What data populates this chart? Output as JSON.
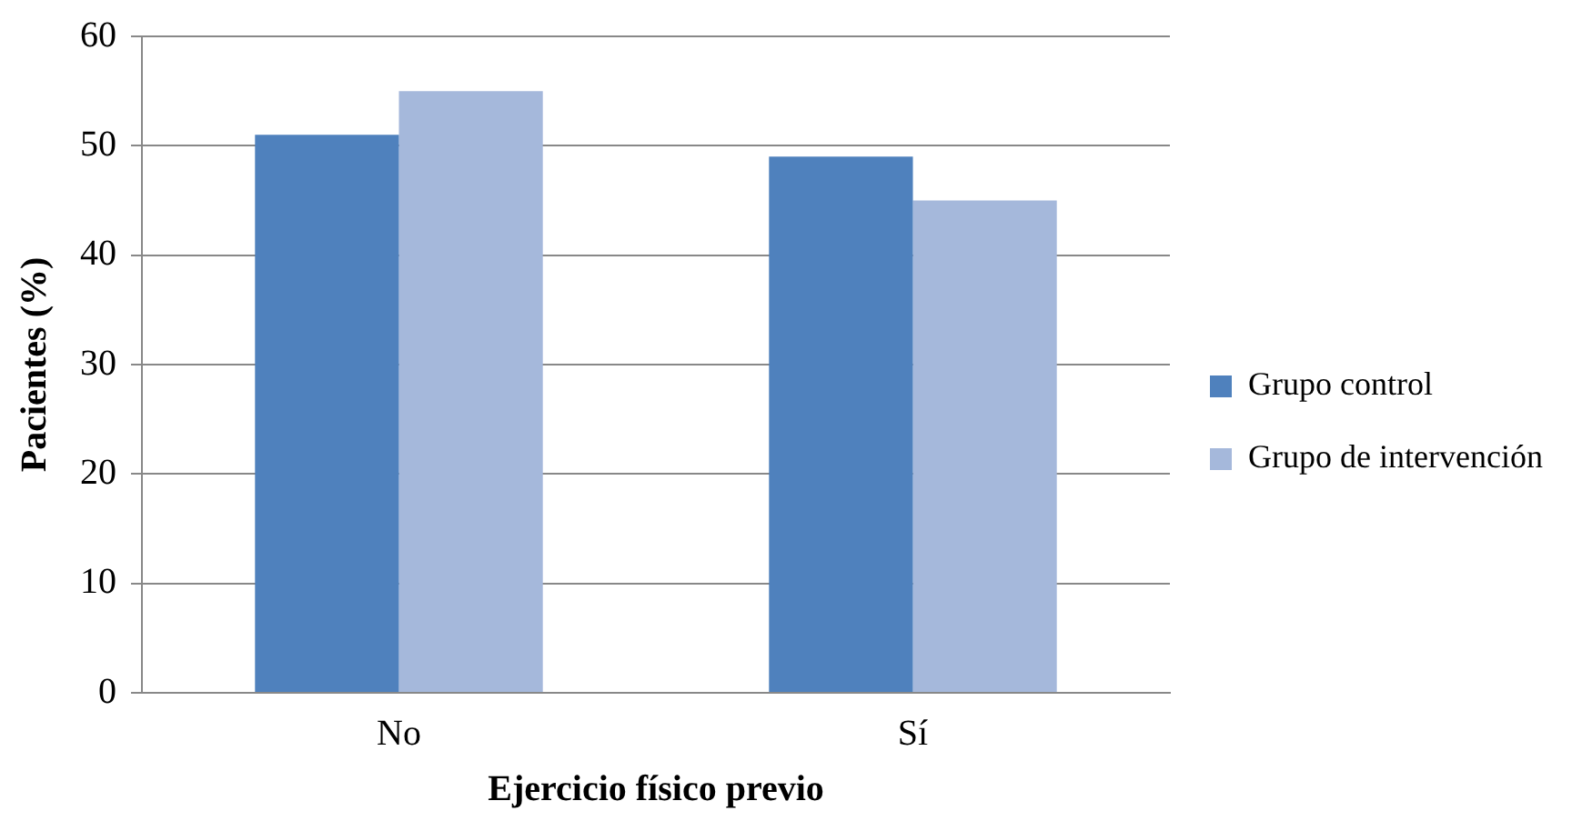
{
  "chart_data": {
    "type": "bar",
    "xlabel": "Ejercicio físico previo",
    "ylabel": "Pacientes (%)",
    "categories": [
      "No",
      "Sí"
    ],
    "series": [
      {
        "name": "Grupo control",
        "color": "#4f81bd",
        "values": [
          51,
          49
        ]
      },
      {
        "name": "Grupo de intervención",
        "color": "#a5b8db",
        "values": [
          55,
          45
        ]
      }
    ],
    "ylim": [
      0,
      60
    ],
    "yticks": [
      0,
      10,
      20,
      30,
      40,
      50,
      60
    ],
    "grid": "y",
    "legend": "right"
  }
}
